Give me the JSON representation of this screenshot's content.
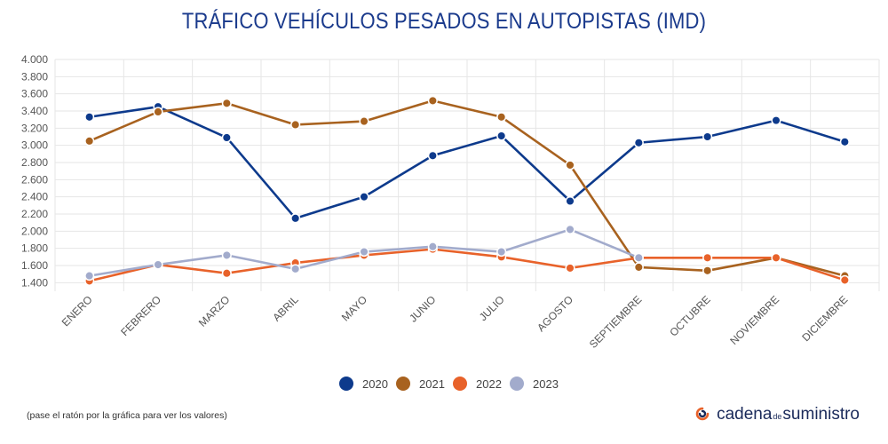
{
  "chart_data": {
    "type": "line",
    "title": "TRÁFICO VEHÍCULOS PESADOS EN AUTOPISTAS (IMD)",
    "categories": [
      "ENERO",
      "FEBRERO",
      "MARZO",
      "ABRIL",
      "MAYO",
      "JUNIO",
      "JULIO",
      "AGOSTO",
      "SEPTIEMBRE",
      "OCTUBRE",
      "NOVIEMBRE",
      "DICIEMBRE"
    ],
    "yticks": [
      "4.000",
      "3.800",
      "3.600",
      "3.400",
      "3.200",
      "3.000",
      "2.800",
      "2.600",
      "2.400",
      "2.200",
      "2.000",
      "1.800",
      "1.600",
      "1.400"
    ],
    "ylim": [
      1300,
      4000
    ],
    "grid": true,
    "legend_position": "bottom",
    "series": [
      {
        "name": "2020",
        "color": "#0d3a8c",
        "values": [
          3330,
          3450,
          3090,
          2150,
          2400,
          2880,
          3110,
          2350,
          3030,
          3100,
          3290,
          3040
        ]
      },
      {
        "name": "2021",
        "color": "#a8621f",
        "values": [
          3050,
          3390,
          3490,
          3240,
          3280,
          3520,
          3330,
          2770,
          1580,
          1540,
          1690,
          1480
        ]
      },
      {
        "name": "2022",
        "color": "#e8622a",
        "values": [
          1420,
          1610,
          1510,
          1630,
          1720,
          1790,
          1700,
          1570,
          1690,
          1690,
          1690,
          1430
        ]
      },
      {
        "name": "2023",
        "color": "#a2abcc",
        "values": [
          1480,
          1610,
          1720,
          1560,
          1760,
          1820,
          1760,
          2020,
          1690,
          null,
          null,
          null
        ]
      }
    ]
  },
  "footer": {
    "note": "(pase el ratón por la gráfica para ver los valores)",
    "brand_part1": "cadena",
    "brand_small": "de",
    "brand_part2": "suministro"
  }
}
